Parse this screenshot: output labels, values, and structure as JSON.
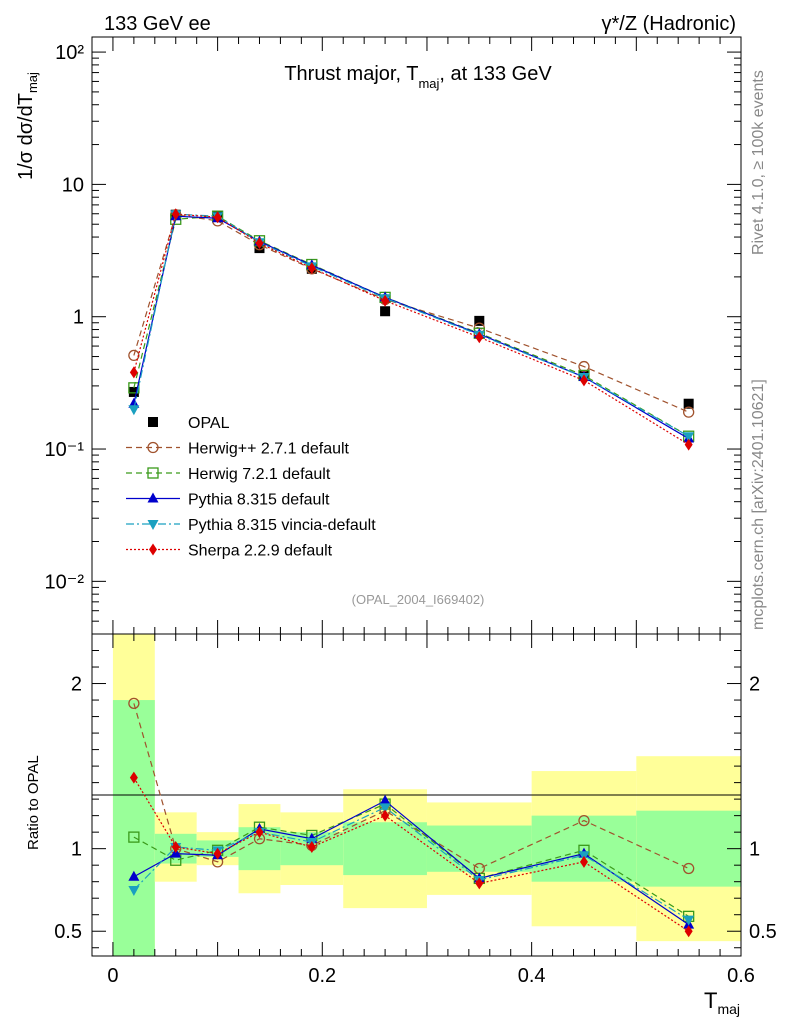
{
  "header": {
    "left": "133 GeV ee",
    "right": "γ*/Z (Hadronic)"
  },
  "side_text": {
    "top": "Rivet 4.1.0, ≥ 100k events",
    "bottom": "mcplots.cern.ch [arXiv:2401.10621]"
  },
  "watermark": "(OPAL_2004_I669402)",
  "chart_data": [
    {
      "panel": "main",
      "type": "line",
      "title": "Thrust major, T_maj, at 133 GeV",
      "ylabel": "1/σ  dσ/dT_maj",
      "yscale": "log",
      "ylim": [
        0.004,
        130
      ],
      "xlim": [
        -0.02,
        0.6
      ],
      "yticks": [
        {
          "value": 100,
          "label": "10²"
        },
        {
          "value": 10,
          "label": "10"
        },
        {
          "value": 1,
          "label": "1"
        },
        {
          "value": 0.1,
          "label": "10⁻¹"
        },
        {
          "value": 0.01,
          "label": "10⁻²"
        }
      ],
      "bins": [
        [
          0.0,
          0.04
        ],
        [
          0.04,
          0.08
        ],
        [
          0.08,
          0.12
        ],
        [
          0.12,
          0.16
        ],
        [
          0.16,
          0.22
        ],
        [
          0.22,
          0.3
        ],
        [
          0.3,
          0.4
        ],
        [
          0.4,
          0.5
        ],
        [
          0.5,
          0.6
        ]
      ],
      "x": [
        0.02,
        0.06,
        0.1,
        0.14,
        0.19,
        0.26,
        0.35,
        0.45,
        0.55
      ],
      "series": [
        {
          "name": "OPAL",
          "color": "#000000",
          "marker": "square-filled",
          "dash": "",
          "values": [
            0.27,
            5.9,
            5.8,
            3.3,
            2.3,
            1.1,
            0.93,
            0.36,
            0.22
          ]
        },
        {
          "name": "Herwig++ 2.7.1 default",
          "color": "#a0522d",
          "marker": "circle-open",
          "dash": "6,4",
          "values": [
            0.51,
            5.9,
            5.3,
            3.5,
            2.3,
            1.35,
            0.82,
            0.42,
            0.19
          ]
        },
        {
          "name": "Herwig 7.2.1 default",
          "color": "#3a9a1a",
          "marker": "square-open",
          "dash": "6,4",
          "values": [
            0.29,
            5.45,
            5.75,
            3.75,
            2.48,
            1.4,
            0.75,
            0.36,
            0.125
          ]
        },
        {
          "name": "Pythia 8.315 default",
          "color": "#0000cc",
          "marker": "triangle-up",
          "dash": "",
          "values": [
            0.22,
            5.75,
            5.55,
            3.7,
            2.45,
            1.4,
            0.74,
            0.35,
            0.12
          ]
        },
        {
          "name": "Pythia 8.315 vincia-default",
          "color": "#1aa0c0",
          "marker": "triangle-down",
          "dash": "8,3,2,3",
          "values": [
            0.2,
            5.95,
            5.75,
            3.65,
            2.4,
            1.38,
            0.73,
            0.35,
            0.125
          ]
        },
        {
          "name": "Sherpa 2.2.9 default",
          "color": "#dd0000",
          "marker": "diamond",
          "dash": "2,2",
          "values": [
            0.38,
            5.95,
            5.65,
            3.6,
            2.33,
            1.32,
            0.7,
            0.33,
            0.108
          ]
        }
      ]
    },
    {
      "panel": "ratio",
      "type": "line",
      "ylabel": "Ratio to OPAL",
      "xlabel": "T_maj",
      "ylim": [
        0.35,
        2.3
      ],
      "xlim": [
        -0.02,
        0.6
      ],
      "xticks": [
        {
          "value": 0,
          "label": "0"
        },
        {
          "value": 0.2,
          "label": "0.2"
        },
        {
          "value": 0.4,
          "label": "0.4"
        },
        {
          "value": 0.6,
          "label": "0.6"
        }
      ],
      "yticks": [
        {
          "value": 2,
          "label": "2"
        },
        {
          "value": 1,
          "label": "1"
        },
        {
          "value": 0.5,
          "label": "0.5"
        }
      ],
      "stat_band": [
        [
          0.35,
          1.9
        ],
        [
          0.91,
          1.09
        ],
        [
          0.95,
          1.05
        ],
        [
          0.87,
          1.13
        ],
        [
          0.9,
          1.1
        ],
        [
          0.84,
          1.16
        ],
        [
          0.86,
          1.14
        ],
        [
          0.8,
          1.2
        ],
        [
          0.77,
          1.23
        ]
      ],
      "total_band": [
        [
          0.35,
          2.3
        ],
        [
          0.8,
          1.22
        ],
        [
          0.9,
          1.1
        ],
        [
          0.73,
          1.27
        ],
        [
          0.78,
          1.22
        ],
        [
          0.64,
          1.36
        ],
        [
          0.72,
          1.28
        ],
        [
          0.53,
          1.47
        ],
        [
          0.44,
          1.56
        ]
      ],
      "series": [
        {
          "name": "Herwig++ 2.7.1 default",
          "values": [
            1.88,
            1.0,
            0.92,
            1.06,
            1.02,
            1.23,
            0.88,
            1.17,
            0.88
          ]
        },
        {
          "name": "Herwig 7.2.1 default",
          "values": [
            1.07,
            0.93,
            0.99,
            1.13,
            1.08,
            1.27,
            0.82,
            0.99,
            0.59
          ]
        },
        {
          "name": "Pythia 8.315 default",
          "values": [
            0.83,
            0.97,
            0.96,
            1.12,
            1.06,
            1.29,
            0.82,
            0.97,
            0.54
          ]
        },
        {
          "name": "Pythia 8.315 vincia-default",
          "values": [
            0.75,
            1.01,
            0.99,
            1.1,
            1.04,
            1.25,
            0.81,
            0.96,
            0.57
          ]
        },
        {
          "name": "Sherpa 2.2.9 default",
          "values": [
            1.43,
            1.01,
            0.97,
            1.1,
            1.01,
            1.2,
            0.79,
            0.92,
            0.5
          ]
        }
      ]
    }
  ]
}
